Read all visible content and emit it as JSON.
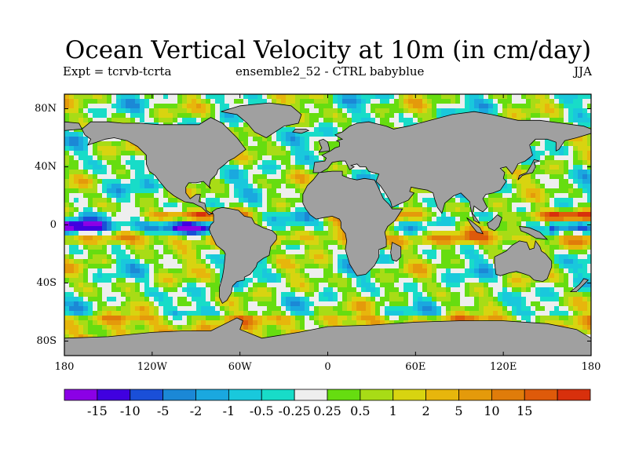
{
  "title": "Ocean Vertical Velocity at 10m (in cm/day)",
  "experiment": "Expt = tcrvb-tcrta",
  "run": "ensemble2_52 - CTRL babyblue",
  "season": "JJA",
  "lat_ticks": [
    "80N",
    "40N",
    "0",
    "40S",
    "80S"
  ],
  "lon_ticks": [
    "180",
    "120W",
    "60W",
    "0",
    "60E",
    "120E",
    "180"
  ],
  "colors": {
    "land": "#a0a0a0",
    "frame": "#000000",
    "bins": [
      "#8b00e6",
      "#4000e0",
      "#1a4fd8",
      "#1b88d6",
      "#1aa8df",
      "#19c8dc",
      "#18dcc8",
      "#eeeeee",
      "#66dd10",
      "#a8dc16",
      "#d8d410",
      "#e7b60c",
      "#e49a0b",
      "#e07c0a",
      "#de5a0a",
      "#d8300c"
    ]
  },
  "colorbar_labels": [
    "-15",
    "-10",
    "-5",
    "-2",
    "-1",
    "-0.5",
    "-0.25",
    "0.25",
    "0.5",
    "1",
    "2",
    "5",
    "10",
    "15"
  ]
}
